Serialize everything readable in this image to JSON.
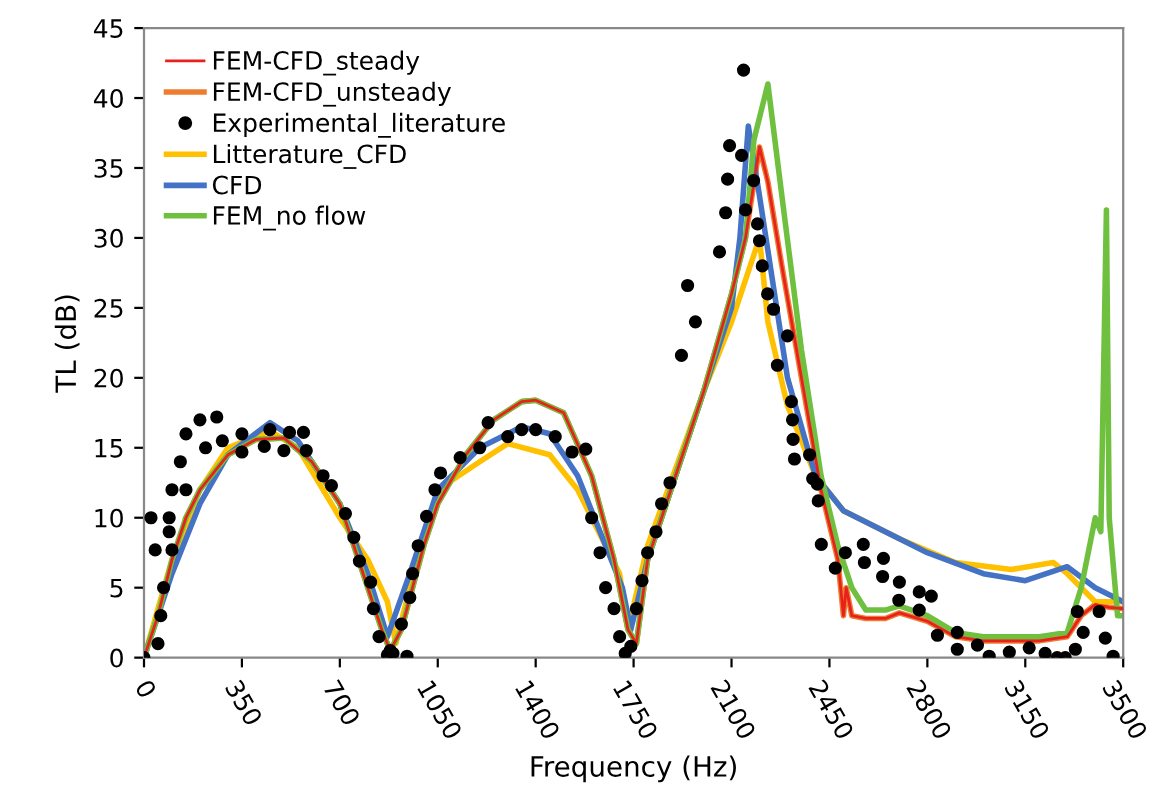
{
  "chart_data": {
    "type": "line",
    "xlabel": "Frequency (Hz)",
    "ylabel": "TL (dB)",
    "xlim": [
      0,
      3500
    ],
    "xticks": [
      0,
      350,
      700,
      1050,
      1400,
      1750,
      2100,
      2450,
      2800,
      3150,
      3500
    ],
    "ylim": [
      0,
      45
    ],
    "yticks": [
      0,
      5,
      10,
      15,
      20,
      25,
      30,
      35,
      40,
      45
    ],
    "grid": false,
    "legend": "top left",
    "marker": "none",
    "line_style": "solid",
    "series": [
      {
        "name": "FEM-CFD_steady",
        "color": "#e8211c",
        "x": [
          0,
          50,
          100,
          150,
          200,
          300,
          400,
          500,
          600,
          700,
          800,
          850,
          880,
          920,
          1000,
          1050,
          1150,
          1250,
          1350,
          1400,
          1500,
          1600,
          1680,
          1730,
          1760,
          1800,
          1900,
          2000,
          2100,
          2150,
          2200,
          2230,
          2280,
          2350,
          2420,
          2480,
          2500,
          2510,
          2530,
          2580,
          2650,
          2700,
          2800,
          2900,
          3000,
          3100,
          3200,
          3300,
          3350,
          3400,
          3450,
          3500
        ],
        "values": [
          0,
          3,
          7,
          10,
          12,
          14.5,
          15.6,
          15.7,
          14,
          11,
          5,
          2,
          0.5,
          2,
          8,
          11,
          14.5,
          17,
          18.3,
          18.4,
          17.5,
          13,
          7,
          2,
          1,
          7,
          13,
          19,
          26,
          30,
          36.5,
          34,
          28,
          20,
          12,
          7,
          3,
          5,
          3,
          2.8,
          2.8,
          3.2,
          2.6,
          1.5,
          1.2,
          1.2,
          1.2,
          1.5,
          3,
          3.8,
          3.6,
          3.5
        ]
      },
      {
        "name": "FEM-CFD_unsteady",
        "color": "#ed7d31",
        "x": [
          150,
          200,
          300,
          400,
          500,
          600,
          700,
          800,
          850,
          880,
          920,
          1000,
          1050,
          1150,
          1250,
          1350,
          1400,
          1500,
          1600,
          1680,
          1730,
          1760,
          1800,
          1900,
          2000,
          2100,
          2150,
          2200,
          2230,
          2280,
          2350,
          2420,
          2480,
          2500,
          2510,
          2530,
          2580,
          2650,
          2700,
          2800,
          2900,
          3000,
          3100,
          3200,
          3300,
          3350,
          3400,
          3450,
          3500
        ],
        "values": [
          10,
          12,
          14.5,
          15.6,
          15.7,
          14,
          11,
          5,
          2,
          0.5,
          2,
          8,
          11,
          14.5,
          17,
          18.3,
          18.4,
          17.5,
          13,
          7,
          2,
          1,
          7,
          13,
          19,
          26,
          30,
          36.5,
          34,
          28,
          20,
          12,
          7,
          3,
          5,
          3,
          2.8,
          2.8,
          3.2,
          2.6,
          1.5,
          1.2,
          1.2,
          1.2,
          1.5,
          3,
          3.8,
          3.6,
          3.5
        ]
      },
      {
        "name": "Experimental_literature",
        "color": "#000000",
        "type": "scatter",
        "marker": "circle",
        "x": [
          0,
          25,
          40,
          50,
          60,
          70,
          90,
          90,
          100,
          100,
          130,
          150,
          150,
          200,
          220,
          260,
          280,
          350,
          350,
          430,
          450,
          500,
          520,
          570,
          580,
          640,
          670,
          720,
          750,
          770,
          810,
          820,
          840,
          870,
          880,
          890,
          920,
          940,
          950,
          960,
          980,
          1010,
          1040,
          1060,
          1130,
          1200,
          1230,
          1300,
          1350,
          1400,
          1470,
          1530,
          1579,
          1600,
          1630,
          1650,
          1680,
          1700,
          1720,
          1740,
          1760,
          1780,
          1800,
          1830,
          1850,
          1880,
          1921,
          1943,
          1971,
          2057,
          2079,
          2086,
          2093,
          2136,
          2143,
          2150,
          2179,
          2193,
          2200,
          2210,
          2229,
          2250,
          2264,
          2300,
          2314,
          2318,
          2320,
          2325,
          2379,
          2390,
          2407,
          2410,
          2421,
          2471,
          2507,
          2571,
          2575,
          2643,
          2640,
          2700,
          2698,
          2771,
          2814,
          2771,
          2836,
          2907,
          2907,
          2979,
          3021,
          3093,
          3164,
          3221,
          3264,
          3293,
          3329,
          3336,
          3357,
          3414,
          3436,
          3464
        ],
        "values": [
          0,
          10,
          7.7,
          1,
          3,
          5,
          10,
          9,
          7.7,
          12,
          14,
          16,
          12,
          17,
          15,
          17.2,
          15.5,
          14.7,
          16,
          15.1,
          16.3,
          14.8,
          16.1,
          16.1,
          14.8,
          13,
          12.3,
          10.3,
          8.6,
          6.9,
          5.4,
          3.5,
          1.5,
          0.2,
          0.5,
          0.3,
          2.4,
          0.1,
          4.3,
          6,
          8,
          10.1,
          12,
          13.2,
          14.3,
          15,
          16.8,
          15.8,
          16.3,
          16.3,
          15.8,
          14.7,
          14.9,
          10,
          7.5,
          5,
          3.5,
          1.5,
          0.3,
          0.8,
          3.5,
          5.5,
          7.5,
          9,
          11,
          12.5,
          21.6,
          26.6,
          24,
          29,
          31.8,
          34.2,
          36.6,
          35.9,
          42,
          32,
          34.1,
          31,
          29.8,
          28,
          26,
          24.9,
          20.9,
          23,
          18.3,
          17,
          15.6,
          14.2,
          14.5,
          12.8,
          12.4,
          11.2,
          8.1,
          6.4,
          7.5,
          8.1,
          6.8,
          7.1,
          5.8,
          5.4,
          4.1,
          4.7,
          4.4,
          3.4,
          1.6,
          1.8,
          0.6,
          0.9,
          0.1,
          0.4,
          0.7,
          0.3,
          0,
          0,
          0.6,
          3.3,
          1.8,
          3.3,
          1.4,
          0.1
        ]
      },
      {
        "name": "Litterature_CFD",
        "color": "#ffc000",
        "x": [
          0,
          100,
          200,
          300,
          450,
          550,
          700,
          800,
          870,
          900,
          950,
          1050,
          1200,
          1300,
          1450,
          1550,
          1700,
          1730,
          1800,
          2000,
          2100,
          2200,
          2230,
          2300,
          2400,
          2500,
          2700,
          2900,
          3100,
          3250,
          3300,
          3400,
          3500
        ],
        "values": [
          0,
          7,
          12,
          15,
          16.2,
          15,
          10,
          7,
          4,
          1,
          5,
          12,
          14,
          15.3,
          14.5,
          12,
          6,
          2,
          8,
          19,
          24,
          30,
          24,
          18,
          13,
          10.5,
          8.5,
          6.8,
          6.3,
          6.8,
          6,
          4,
          4
        ]
      },
      {
        "name": "CFD",
        "color": "#4472c4",
        "x": [
          0,
          100,
          200,
          300,
          450,
          550,
          700,
          800,
          870,
          950,
          1050,
          1200,
          1350,
          1450,
          1550,
          1650,
          1710,
          1740,
          1800,
          2000,
          2100,
          2130,
          2160,
          2200,
          2300,
          2400,
          2500,
          2600,
          2800,
          3000,
          3150,
          3300,
          3400,
          3500
        ],
        "values": [
          0,
          6,
          11,
          14.5,
          16.8,
          15.5,
          11,
          6,
          1.5,
          6,
          12,
          15,
          16.5,
          16,
          13,
          8,
          5,
          2,
          7,
          19,
          25,
          30,
          38,
          33,
          20,
          13,
          10.5,
          9.5,
          7.5,
          6,
          5.5,
          6.5,
          5,
          4
        ]
      },
      {
        "name": "FEM_no flow",
        "color": "#70c040",
        "x": [
          0,
          50,
          100,
          150,
          200,
          300,
          400,
          500,
          600,
          700,
          800,
          850,
          880,
          920,
          1000,
          1050,
          1150,
          1250,
          1350,
          1400,
          1500,
          1600,
          1680,
          1730,
          1760,
          1800,
          1900,
          2000,
          2100,
          2150,
          2180,
          2230,
          2280,
          2350,
          2420,
          2480,
          2530,
          2580,
          2650,
          2700,
          2800,
          2900,
          3000,
          3100,
          3200,
          3300,
          3350,
          3400,
          3420,
          3440,
          3450,
          3480,
          3500
        ],
        "values": [
          0,
          3,
          7,
          10,
          12,
          14.5,
          15.6,
          15.7,
          14,
          11,
          5,
          2,
          0.5,
          2,
          8,
          11,
          14.5,
          17,
          18.3,
          18.4,
          17.5,
          13,
          7,
          2,
          1,
          7,
          13,
          19,
          26,
          30,
          37,
          41,
          33,
          22,
          13,
          8,
          5,
          3.4,
          3.4,
          3.7,
          3,
          1.8,
          1.5,
          1.5,
          1.5,
          1.8,
          5,
          10,
          9,
          32,
          10,
          3,
          3
        ]
      }
    ]
  }
}
